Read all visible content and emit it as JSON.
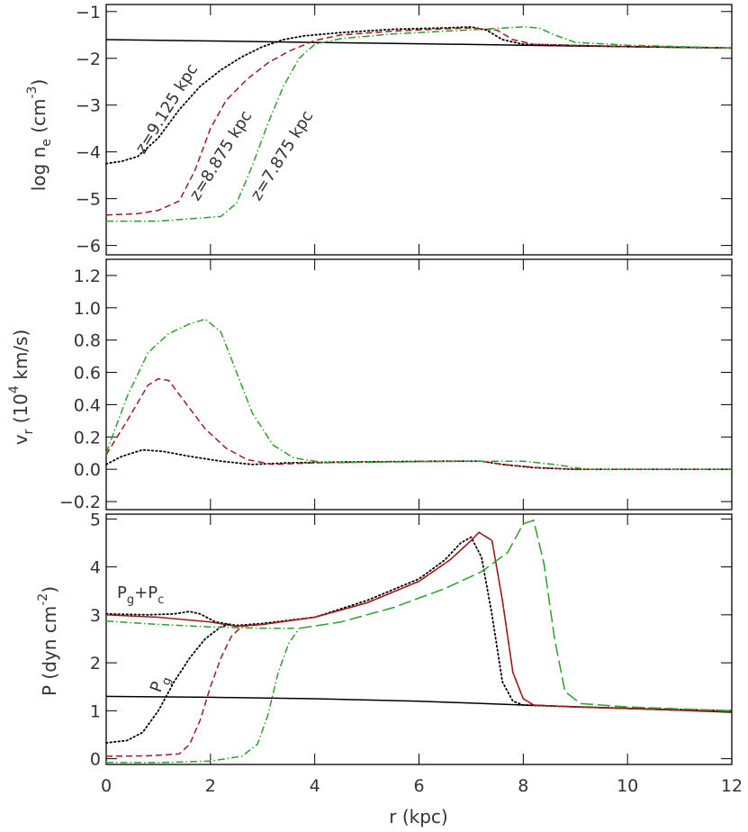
{
  "colors": {
    "black": "#000000",
    "red": "#9b1b1b",
    "green": "#2aa02a"
  },
  "chart_data": [
    {
      "type": "line",
      "panel": "top",
      "ylabel": "log n",
      "ylabel_sub": "e",
      "ylabel_unit": " (cm",
      "ylabel_sup": "-3",
      "ylabel_close": ")",
      "xlim": [
        0,
        12
      ],
      "ylim": [
        -6.2,
        -0.85
      ],
      "yticks": [
        -6,
        -5,
        -4,
        -3,
        -2,
        -1
      ],
      "annotations": [
        "z=9.125 kpc",
        "z=8.875 kpc",
        "z=7.875 kpc"
      ],
      "series": [
        {
          "style": "solid",
          "color": "black",
          "points": [
            [
              0,
              -1.6
            ],
            [
              2,
              -1.63
            ],
            [
              4,
              -1.66
            ],
            [
              6,
              -1.69
            ],
            [
              8,
              -1.72
            ],
            [
              10,
              -1.75
            ],
            [
              12,
              -1.78
            ]
          ]
        },
        {
          "style": "dotted",
          "color": "black",
          "points": [
            [
              0,
              -4.25
            ],
            [
              0.3,
              -4.2
            ],
            [
              0.6,
              -4.1
            ],
            [
              1.0,
              -3.7
            ],
            [
              1.4,
              -3.1
            ],
            [
              1.8,
              -2.6
            ],
            [
              2.2,
              -2.25
            ],
            [
              2.6,
              -1.97
            ],
            [
              3.0,
              -1.75
            ],
            [
              3.4,
              -1.6
            ],
            [
              3.8,
              -1.52
            ],
            [
              4.5,
              -1.45
            ],
            [
              5.5,
              -1.38
            ],
            [
              6.5,
              -1.35
            ],
            [
              7.0,
              -1.33
            ],
            [
              7.3,
              -1.4
            ],
            [
              7.6,
              -1.6
            ],
            [
              8.0,
              -1.7
            ],
            [
              10,
              -1.75
            ],
            [
              12,
              -1.78
            ]
          ]
        },
        {
          "style": "dashed",
          "color": "red",
          "points": [
            [
              0,
              -5.35
            ],
            [
              0.6,
              -5.32
            ],
            [
              1.0,
              -5.25
            ],
            [
              1.4,
              -5.05
            ],
            [
              1.7,
              -4.4
            ],
            [
              2.0,
              -3.5
            ],
            [
              2.3,
              -2.9
            ],
            [
              2.7,
              -2.45
            ],
            [
              3.1,
              -2.1
            ],
            [
              3.5,
              -1.85
            ],
            [
              4.0,
              -1.62
            ],
            [
              4.5,
              -1.5
            ],
            [
              5.5,
              -1.42
            ],
            [
              6.5,
              -1.37
            ],
            [
              7.0,
              -1.35
            ],
            [
              7.5,
              -1.4
            ],
            [
              7.8,
              -1.6
            ],
            [
              8.2,
              -1.7
            ],
            [
              10,
              -1.75
            ],
            [
              12,
              -1.78
            ]
          ]
        },
        {
          "style": "dashdot",
          "color": "green",
          "points": [
            [
              0,
              -5.48
            ],
            [
              1.0,
              -5.48
            ],
            [
              2.2,
              -5.38
            ],
            [
              2.5,
              -5.1
            ],
            [
              2.8,
              -4.3
            ],
            [
              3.1,
              -3.4
            ],
            [
              3.4,
              -2.6
            ],
            [
              3.7,
              -2.0
            ],
            [
              4.0,
              -1.7
            ],
            [
              4.5,
              -1.58
            ],
            [
              5.5,
              -1.48
            ],
            [
              6.5,
              -1.42
            ],
            [
              7.5,
              -1.36
            ],
            [
              8.0,
              -1.33
            ],
            [
              8.3,
              -1.35
            ],
            [
              8.6,
              -1.5
            ],
            [
              9.0,
              -1.66
            ],
            [
              10,
              -1.72
            ],
            [
              12,
              -1.78
            ]
          ]
        }
      ]
    },
    {
      "type": "line",
      "panel": "middle",
      "ylabel": "v",
      "ylabel_sub": "r",
      "ylabel_unit": " (10",
      "ylabel_sup": "4",
      "ylabel_close": " km/s)",
      "xlim": [
        0,
        12
      ],
      "ylim": [
        -0.25,
        1.3
      ],
      "yticks": [
        -0.2,
        0.0,
        0.2,
        0.4,
        0.6,
        0.8,
        1.0,
        1.2
      ],
      "ytick_labels": [
        "−0.2",
        "0.0",
        "0.2",
        "0.4",
        "0.6",
        "0.8",
        "1.0",
        "1.2"
      ],
      "series": [
        {
          "style": "dotted",
          "color": "black",
          "points": [
            [
              0,
              0.03
            ],
            [
              0.3,
              0.08
            ],
            [
              0.7,
              0.12
            ],
            [
              1.1,
              0.11
            ],
            [
              1.6,
              0.08
            ],
            [
              2.2,
              0.05
            ],
            [
              2.8,
              0.03
            ],
            [
              3.5,
              0.04
            ],
            [
              4.5,
              0.045
            ],
            [
              6.5,
              0.05
            ],
            [
              7.2,
              0.05
            ],
            [
              7.6,
              0.03
            ],
            [
              8.2,
              0.01
            ],
            [
              9,
              0.0
            ],
            [
              12,
              0.0
            ]
          ]
        },
        {
          "style": "dashed",
          "color": "red",
          "points": [
            [
              0,
              0.09
            ],
            [
              0.4,
              0.3
            ],
            [
              0.8,
              0.52
            ],
            [
              1.0,
              0.56
            ],
            [
              1.2,
              0.55
            ],
            [
              1.5,
              0.42
            ],
            [
              1.9,
              0.25
            ],
            [
              2.3,
              0.13
            ],
            [
              2.7,
              0.06
            ],
            [
              3.2,
              0.03
            ],
            [
              4,
              0.04
            ],
            [
              5,
              0.045
            ],
            [
              6.5,
              0.05
            ],
            [
              7.2,
              0.05
            ],
            [
              7.6,
              0.03
            ],
            [
              8.3,
              0.01
            ],
            [
              9,
              0.0
            ],
            [
              12,
              0.0
            ]
          ]
        },
        {
          "style": "dashdot",
          "color": "green",
          "points": [
            [
              0,
              0.1
            ],
            [
              0.4,
              0.45
            ],
            [
              0.8,
              0.72
            ],
            [
              1.2,
              0.84
            ],
            [
              1.6,
              0.9
            ],
            [
              1.9,
              0.93
            ],
            [
              2.2,
              0.85
            ],
            [
              2.5,
              0.6
            ],
            [
              2.8,
              0.35
            ],
            [
              3.2,
              0.15
            ],
            [
              3.6,
              0.07
            ],
            [
              4.2,
              0.04
            ],
            [
              5.5,
              0.045
            ],
            [
              7,
              0.05
            ],
            [
              8,
              0.05
            ],
            [
              8.6,
              0.03
            ],
            [
              9.2,
              0.0
            ],
            [
              12,
              0.0
            ]
          ]
        }
      ]
    },
    {
      "type": "line",
      "panel": "bottom",
      "ylabel": "P (dyn cm",
      "ylabel_sup": "-2",
      "ylabel_close": ")",
      "xlabel": "r (kpc)",
      "xlim": [
        0,
        12
      ],
      "ylim": [
        -0.12,
        5.1
      ],
      "yticks": [
        0,
        1,
        2,
        3,
        4,
        5
      ],
      "xticks": [
        0,
        2,
        4,
        6,
        8,
        10,
        12
      ],
      "annotations": {
        "pgpc": {
          "p1": "P",
          "s1": "g",
          "plus": "+P",
          "s2": "c"
        },
        "pg": {
          "p": "P",
          "s": "g"
        }
      },
      "series": [
        {
          "style": "solid",
          "color": "black",
          "points": [
            [
              0,
              1.3
            ],
            [
              2,
              1.28
            ],
            [
              4,
              1.25
            ],
            [
              6,
              1.2
            ],
            [
              8,
              1.12
            ],
            [
              10,
              1.05
            ],
            [
              12,
              0.97
            ]
          ]
        },
        {
          "style": "dotted",
          "color": "black",
          "points": [
            [
              0,
              3.02
            ],
            [
              0.8,
              3.0
            ],
            [
              1.3,
              3.02
            ],
            [
              1.6,
              3.07
            ],
            [
              1.8,
              3.02
            ],
            [
              2.1,
              2.85
            ],
            [
              2.5,
              2.78
            ],
            [
              3,
              2.82
            ],
            [
              4,
              2.95
            ],
            [
              5,
              3.3
            ],
            [
              6,
              3.75
            ],
            [
              6.5,
              4.15
            ],
            [
              6.8,
              4.5
            ],
            [
              7.0,
              4.62
            ],
            [
              7.2,
              4.2
            ],
            [
              7.4,
              3.0
            ],
            [
              7.6,
              1.6
            ],
            [
              7.8,
              1.2
            ],
            [
              8.0,
              1.12
            ],
            [
              9,
              1.08
            ],
            [
              12,
              1.0
            ]
          ]
        },
        {
          "style": "solid",
          "color": "red",
          "points": [
            [
              0,
              3.0
            ],
            [
              1,
              2.95
            ],
            [
              2,
              2.85
            ],
            [
              2.5,
              2.76
            ],
            [
              3,
              2.8
            ],
            [
              4,
              2.95
            ],
            [
              5,
              3.25
            ],
            [
              6,
              3.7
            ],
            [
              6.6,
              4.15
            ],
            [
              7.0,
              4.55
            ],
            [
              7.15,
              4.72
            ],
            [
              7.4,
              4.55
            ],
            [
              7.6,
              3.3
            ],
            [
              7.8,
              1.8
            ],
            [
              8.0,
              1.25
            ],
            [
              8.2,
              1.12
            ],
            [
              9,
              1.08
            ],
            [
              12,
              0.98
            ]
          ]
        },
        {
          "style": "dotted",
          "color": "black",
          "points": [
            [
              0,
              0.33
            ],
            [
              0.4,
              0.38
            ],
            [
              0.7,
              0.55
            ],
            [
              1.0,
              1.0
            ],
            [
              1.3,
              1.6
            ],
            [
              1.6,
              2.1
            ],
            [
              1.9,
              2.5
            ],
            [
              2.2,
              2.75
            ],
            [
              2.4,
              2.82
            ]
          ]
        },
        {
          "style": "dashed",
          "color": "red",
          "points": [
            [
              0,
              0.05
            ],
            [
              0.8,
              0.06
            ],
            [
              1.4,
              0.1
            ],
            [
              1.6,
              0.3
            ],
            [
              1.8,
              0.8
            ],
            [
              2.0,
              1.5
            ],
            [
              2.2,
              2.1
            ],
            [
              2.4,
              2.55
            ],
            [
              2.6,
              2.76
            ],
            [
              3,
              2.8
            ],
            [
              4,
              2.95
            ],
            [
              5,
              3.25
            ],
            [
              6,
              3.7
            ],
            [
              6.6,
              4.15
            ],
            [
              7.0,
              4.55
            ],
            [
              7.15,
              4.72
            ],
            [
              7.4,
              4.55
            ],
            [
              7.6,
              3.3
            ],
            [
              7.8,
              1.8
            ],
            [
              8.0,
              1.25
            ],
            [
              8.2,
              1.12
            ],
            [
              9,
              1.08
            ],
            [
              12,
              0.98
            ]
          ]
        },
        {
          "style": "dashdot",
          "color": "green",
          "points": [
            [
              0,
              2.87
            ],
            [
              1,
              2.8
            ],
            [
              2,
              2.75
            ],
            [
              3,
              2.72
            ],
            [
              3.6,
              2.72
            ]
          ]
        },
        {
          "style": "dashdot",
          "color": "green",
          "points": [
            [
              0,
              -0.08
            ],
            [
              1,
              -0.08
            ],
            [
              2,
              -0.05
            ],
            [
              2.6,
              0.05
            ],
            [
              2.9,
              0.3
            ],
            [
              3.1,
              0.9
            ],
            [
              3.3,
              1.8
            ],
            [
              3.5,
              2.4
            ],
            [
              3.7,
              2.72
            ]
          ]
        },
        {
          "style": "longdash",
          "color": "green",
          "points": [
            [
              3.7,
              2.72
            ],
            [
              4.5,
              2.85
            ],
            [
              5.5,
              3.15
            ],
            [
              6.5,
              3.55
            ],
            [
              7.2,
              3.9
            ],
            [
              7.7,
              4.3
            ],
            [
              8.0,
              4.9
            ],
            [
              8.2,
              4.97
            ],
            [
              8.4,
              4.05
            ],
            [
              8.6,
              2.5
            ],
            [
              8.8,
              1.4
            ],
            [
              9.1,
              1.15
            ],
            [
              10,
              1.08
            ],
            [
              12,
              1.0
            ]
          ]
        }
      ]
    }
  ]
}
